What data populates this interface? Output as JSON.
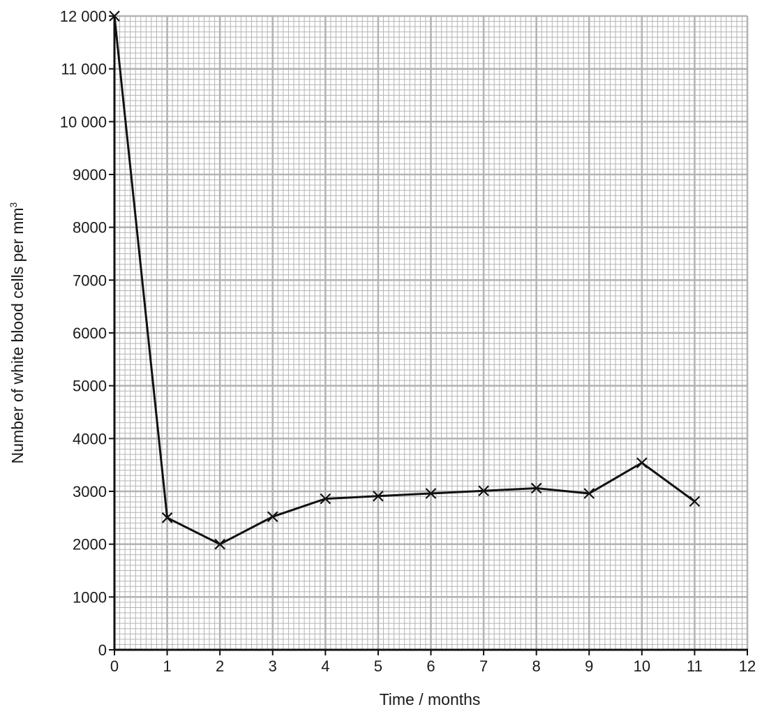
{
  "chart_data": {
    "type": "line",
    "xlabel": "Time / months",
    "ylabel": "Number of white blood cells per mm",
    "ylabel_superscript": "3",
    "xlim": [
      0,
      12
    ],
    "ylim": [
      0,
      12000
    ],
    "x_ticks": [
      0,
      1,
      2,
      3,
      4,
      5,
      6,
      7,
      8,
      9,
      10,
      11,
      12
    ],
    "x_tick_labels": [
      "0",
      "1",
      "2",
      "3",
      "4",
      "5",
      "6",
      "7",
      "8",
      "9",
      "10",
      "11",
      "12"
    ],
    "y_ticks": [
      0,
      1000,
      2000,
      3000,
      4000,
      5000,
      6000,
      7000,
      8000,
      9000,
      10000,
      11000,
      12000
    ],
    "y_tick_labels": [
      "0",
      "1000",
      "2000",
      "3000",
      "4000",
      "5000",
      "6000",
      "7000",
      "8000",
      "9000",
      "10 000",
      "11 000",
      "12 000"
    ],
    "grid": "on",
    "grid_minor_per_major_x": 10,
    "grid_minor_per_major_y": 10,
    "grid_color": "#b4b4b4",
    "line_color": "#111111",
    "marker": "cross",
    "series": [
      {
        "x": [
          0,
          1,
          2,
          3,
          4,
          5,
          6,
          7,
          8,
          9,
          10,
          11
        ],
        "values": [
          12000,
          2500,
          2000,
          2520,
          2860,
          2910,
          2960,
          3010,
          3060,
          2960,
          3540,
          2810
        ]
      }
    ]
  }
}
